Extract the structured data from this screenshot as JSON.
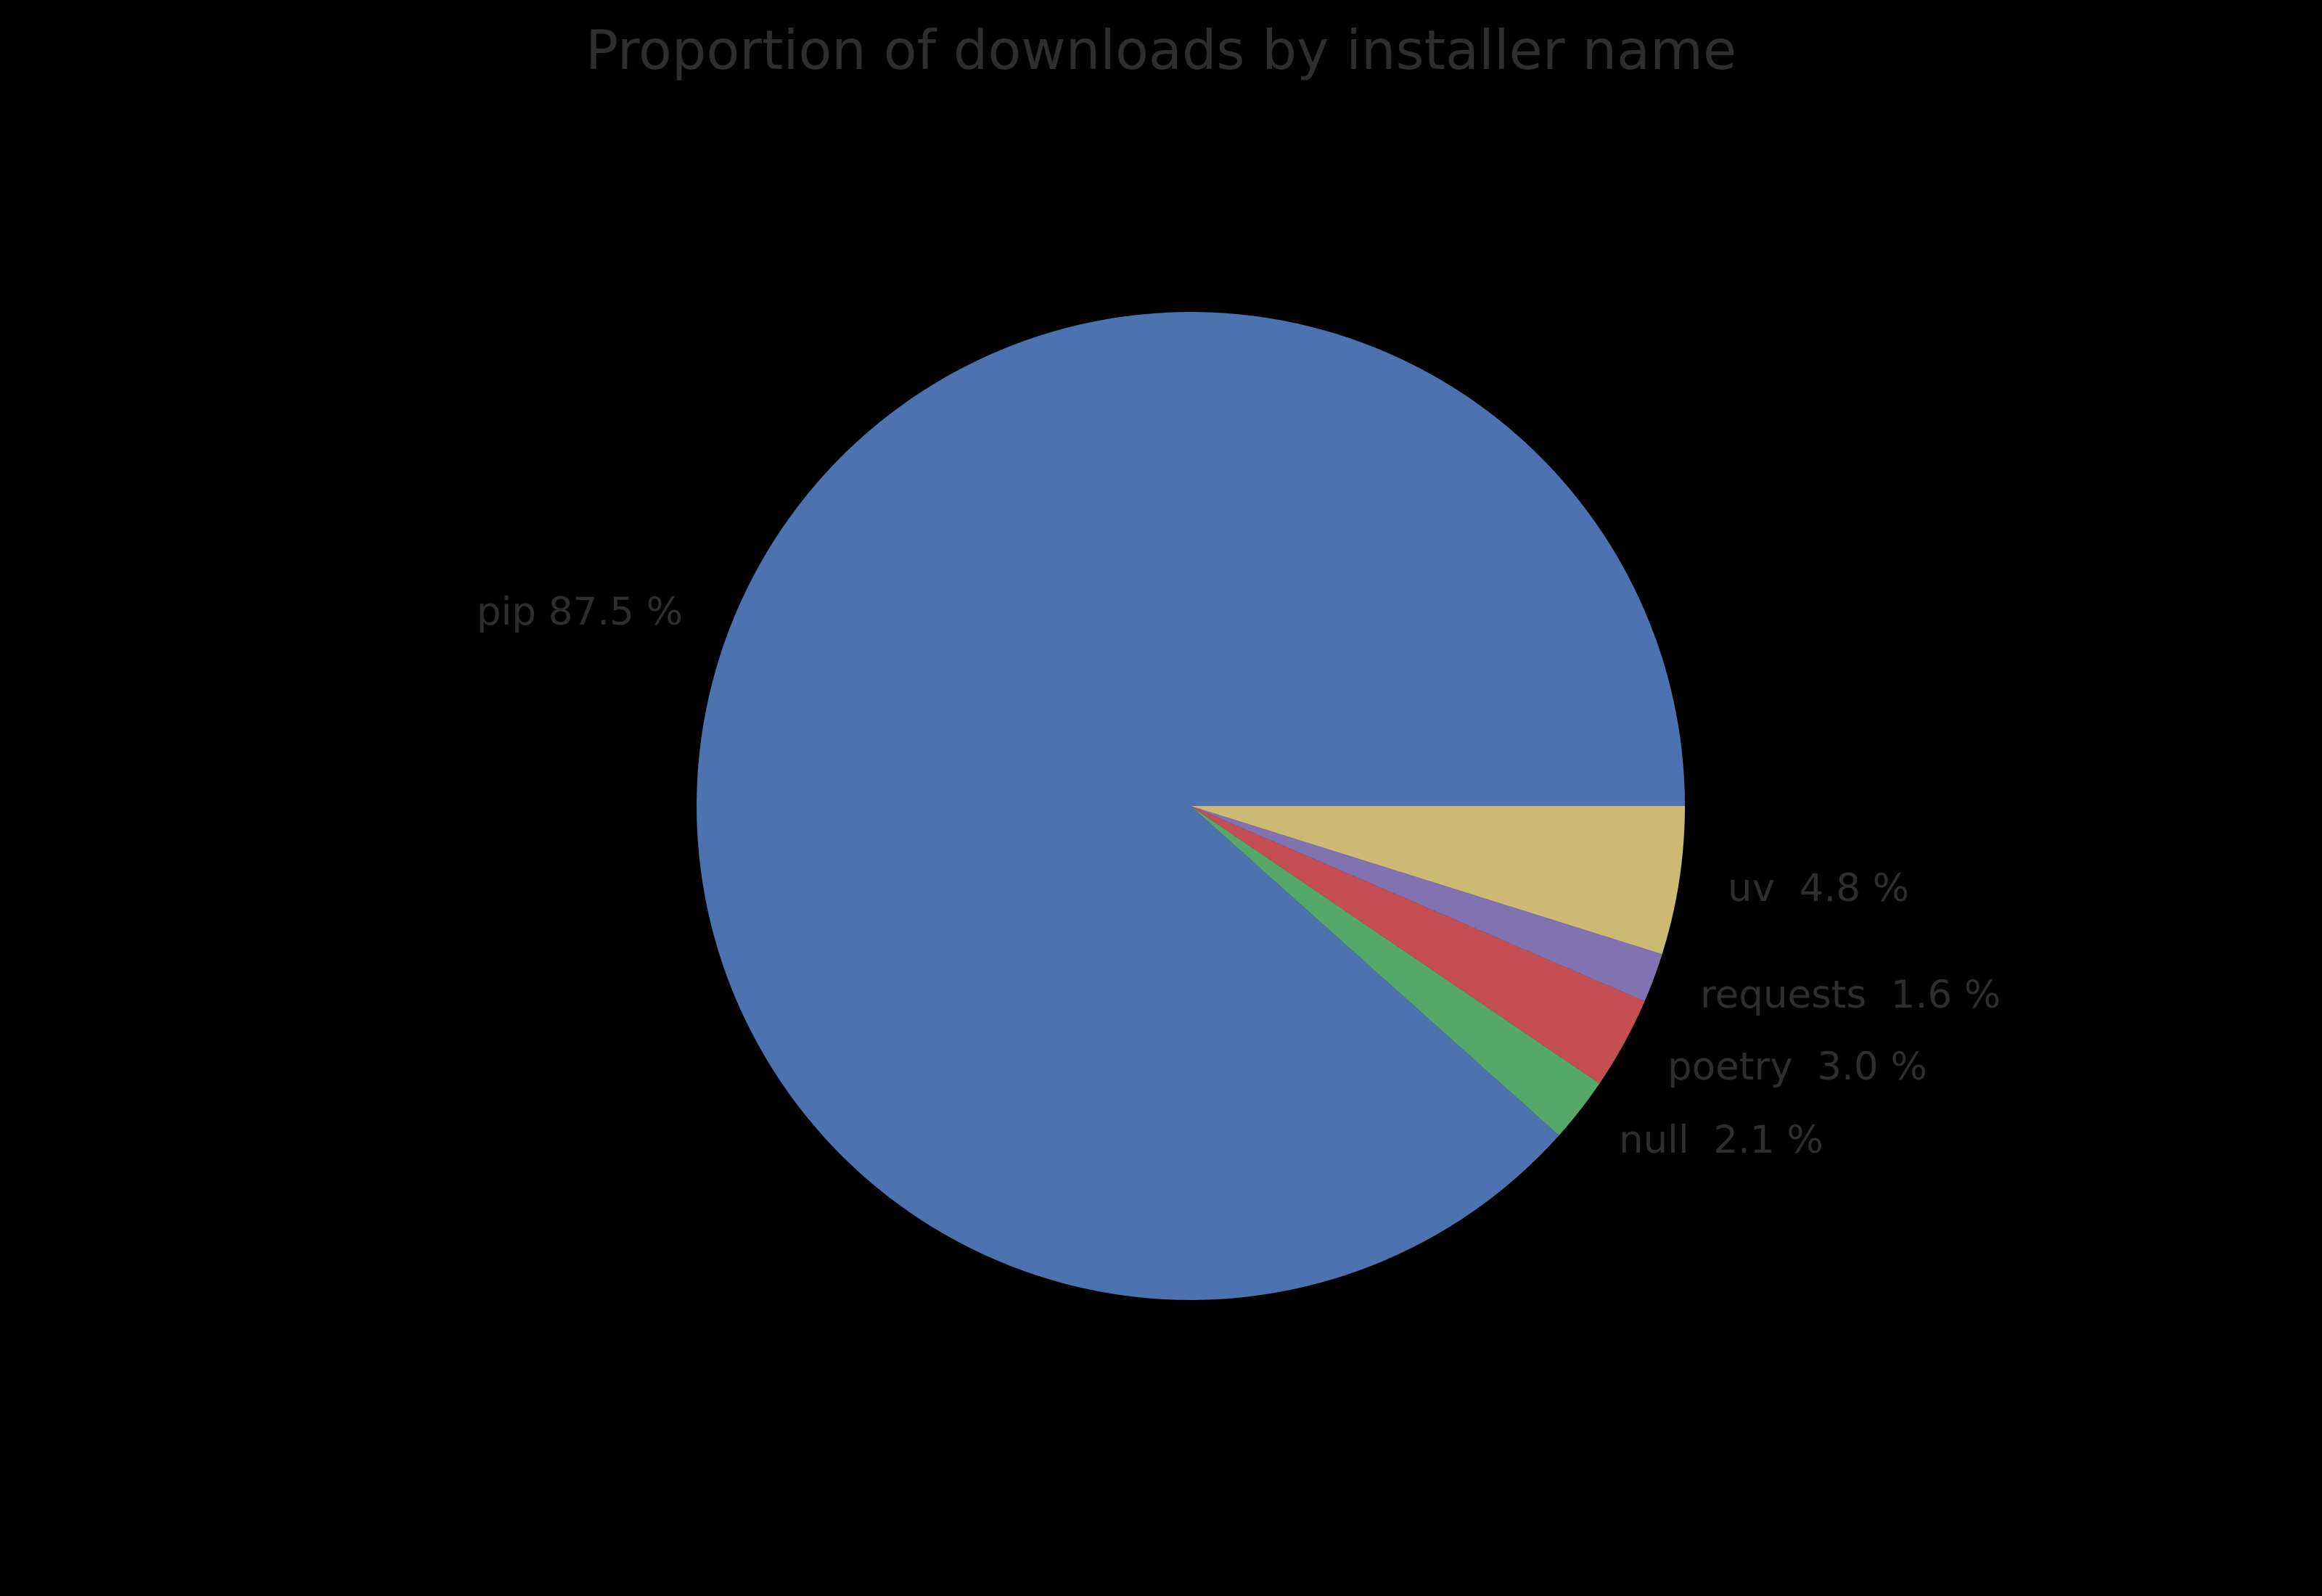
{
  "chart_data": {
    "type": "pie",
    "title": "Proportion of downloads by installer name",
    "background_color": "#000000",
    "text_color": "#2e2e2e",
    "start_angle_deg": 0,
    "direction": "counterclockwise",
    "label_distance_ratio": 1.1,
    "legend": "none",
    "slices": [
      {
        "name": "pip",
        "value": 87.5,
        "label_text": "pip 87.5 %",
        "color": "#4C72B0"
      },
      {
        "name": "null",
        "value": 2.1,
        "label_text": "null  2.1 %",
        "color": "#55A868"
      },
      {
        "name": "poetry",
        "value": 3.0,
        "label_text": "poetry  3.0 %",
        "color": "#C44E52"
      },
      {
        "name": "requests",
        "value": 1.6,
        "label_text": "requests  1.6 %",
        "color": "#8172B2"
      },
      {
        "name": "uv",
        "value": 4.8,
        "label_text": "uv  4.8 %",
        "color": "#CCB974"
      }
    ]
  }
}
